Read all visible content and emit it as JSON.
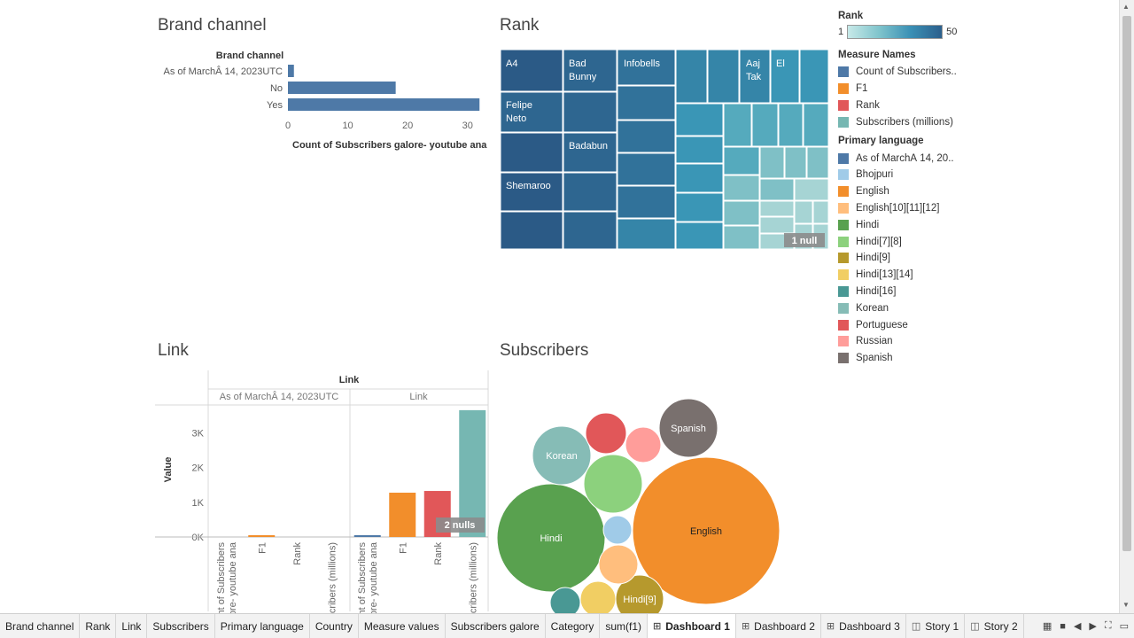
{
  "titles": {
    "brand": "Brand channel",
    "rank": "Rank",
    "link": "Link",
    "subscribers": "Subscribers"
  },
  "brand_chart": {
    "type": "bar",
    "header": "Brand channel",
    "categories": [
      "As of MarchÂ 14, 2023UTC",
      "No",
      "Yes"
    ],
    "values": [
      1,
      18,
      32
    ],
    "xticks": [
      0,
      10,
      20,
      30
    ],
    "xlim": [
      0,
      33
    ],
    "xlabel": "Count of Subscribers galore- youtube ana",
    "color": "#4e79a7"
  },
  "treemap": {
    "labels": [
      "A4",
      "Bad Bunny",
      "Infobells",
      "Aaj Tak",
      "El",
      "Felipe Neto",
      "Badabun",
      "Shemaroo"
    ],
    "null_badge": "1 null",
    "colors": [
      "#2b5a86",
      "#2e6690",
      "#31729a",
      "#3585a8",
      "#3a96b6",
      "#55aabd",
      "#7fc0c6",
      "#a6d4d4"
    ]
  },
  "link_chart": {
    "type": "bar",
    "header": "Link",
    "groups": [
      "As of MarchÂ 14, 2023UTC",
      "Link"
    ],
    "measures": [
      "Count of Subscribers galore- youtube ana",
      "F1",
      "Rank",
      "Subscribers (millions)"
    ],
    "series": [
      {
        "group": "As of MarchÂ 14, 2023UTC",
        "values": [
          0,
          30,
          0,
          0
        ]
      },
      {
        "group": "Link",
        "values": [
          50,
          1275,
          1325,
          3650
        ]
      }
    ],
    "colors": [
      "#4e79a7",
      "#f28e2b",
      "#e15759",
      "#76b7b2"
    ],
    "yticks": [
      "0K",
      "1K",
      "2K",
      "3K"
    ],
    "ylim": [
      0,
      3800
    ],
    "ylabel": "Value",
    "null_badge": "2 nulls"
  },
  "bubbles": [
    {
      "label": "English",
      "color": "#f28e2b"
    },
    {
      "label": "Hindi",
      "color": "#59a14f"
    },
    {
      "label": "Spanish",
      "color": "#79706e"
    },
    {
      "label": "Korean",
      "color": "#86bcb6"
    },
    {
      "label": "Hindi[9]",
      "color": "#b6992d"
    },
    {
      "label": "",
      "color": "#e15759"
    },
    {
      "label": "",
      "color": "#ff9d9a"
    },
    {
      "label": "",
      "color": "#8cd17d"
    },
    {
      "label": "",
      "color": "#a0cbe8"
    },
    {
      "label": "",
      "color": "#ffbe7d"
    },
    {
      "label": "",
      "color": "#f1ce63"
    },
    {
      "label": "",
      "color": "#499894"
    }
  ],
  "legend": {
    "rank_title": "Rank",
    "rank_min": "1",
    "rank_max": "50",
    "measure_title": "Measure Names",
    "measures": [
      {
        "label": "Count of Subscribers..",
        "color": "#4e79a7"
      },
      {
        "label": "F1",
        "color": "#f28e2b"
      },
      {
        "label": "Rank",
        "color": "#e15759"
      },
      {
        "label": "Subscribers (millions)",
        "color": "#76b7b2"
      }
    ],
    "lang_title": "Primary language",
    "languages": [
      {
        "label": "As of MarchÂ 14, 20..",
        "color": "#4e79a7"
      },
      {
        "label": "Bhojpuri",
        "color": "#a0cbe8"
      },
      {
        "label": "English",
        "color": "#f28e2b"
      },
      {
        "label": "English[10][11][12]",
        "color": "#ffbe7d"
      },
      {
        "label": "Hindi",
        "color": "#59a14f"
      },
      {
        "label": "Hindi[7][8]",
        "color": "#8cd17d"
      },
      {
        "label": "Hindi[9]",
        "color": "#b6992d"
      },
      {
        "label": "Hindi[13][14]",
        "color": "#f1ce63"
      },
      {
        "label": "Hindi[16]",
        "color": "#499894"
      },
      {
        "label": "Korean",
        "color": "#86bcb6"
      },
      {
        "label": "Portuguese",
        "color": "#e15759"
      },
      {
        "label": "Russian",
        "color": "#ff9d9a"
      },
      {
        "label": "Spanish",
        "color": "#79706e"
      }
    ]
  },
  "tabs": [
    {
      "label": "Brand channel",
      "icon": ""
    },
    {
      "label": "Rank",
      "icon": ""
    },
    {
      "label": "Link",
      "icon": ""
    },
    {
      "label": "Subscribers",
      "icon": ""
    },
    {
      "label": "Primary language",
      "icon": ""
    },
    {
      "label": "Country",
      "icon": ""
    },
    {
      "label": "Measure values",
      "icon": ""
    },
    {
      "label": "Subscribers galore",
      "icon": ""
    },
    {
      "label": "Category",
      "icon": ""
    },
    {
      "label": "sum(f1)",
      "icon": ""
    },
    {
      "label": "Dashboard 1",
      "icon": "⊞",
      "active": true
    },
    {
      "label": "Dashboard 2",
      "icon": "⊞"
    },
    {
      "label": "Dashboard 3",
      "icon": "⊞"
    },
    {
      "label": "Story 1",
      "icon": "◫"
    },
    {
      "label": "Story 2",
      "icon": "◫"
    }
  ]
}
